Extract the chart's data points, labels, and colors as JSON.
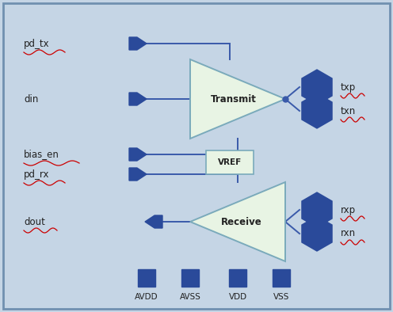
{
  "bg_color": "#c5d5e5",
  "border_color": "#7090b0",
  "blue_dark": "#2a4a9a",
  "line_color": "#3a5aaa",
  "tri_fill": "#e8f4e4",
  "tri_edge": "#7aaabb",
  "vref_fill": "#e8f4e4",
  "vref_edge": "#7aaabb",
  "hex_fill": "#2a4a9a",
  "text_color": "#222222",
  "wavy_color": "#cc0000",
  "bottom_labels": [
    "AVDD",
    "AVSS",
    "VDD",
    "VSS"
  ]
}
